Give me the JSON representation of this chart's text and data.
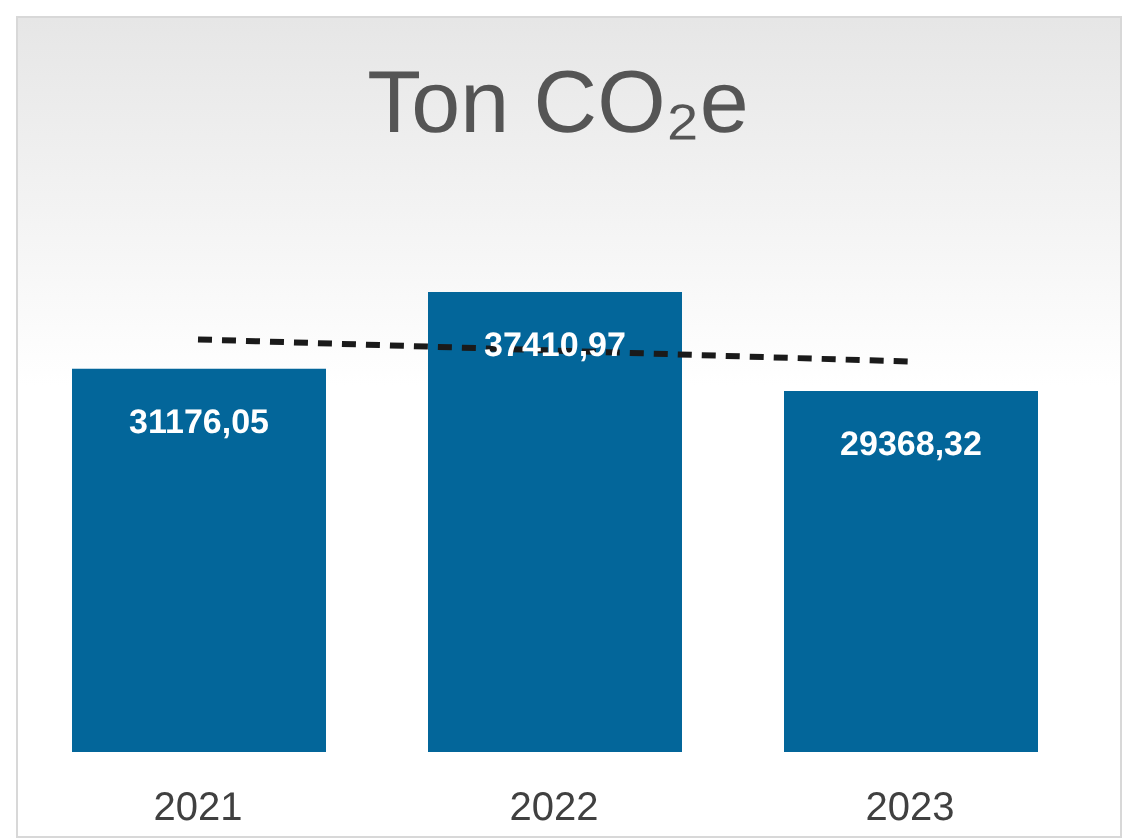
{
  "chart_data": {
    "type": "bar",
    "title": "Ton CO₂e",
    "categories": [
      "2021",
      "2022",
      "2023"
    ],
    "series": [
      {
        "color": "#03669a",
        "values": [
          31176.05,
          37410.97,
          29368.32
        ],
        "value_labels": [
          "31176,05",
          "37410,97",
          "29368,32"
        ]
      },
      {
        "type": "line",
        "color": "#1a1a1a",
        "line_style": "dashed",
        "marker": "none",
        "values": [
          33556,
          32652,
          31748
        ]
      }
    ]
  }
}
